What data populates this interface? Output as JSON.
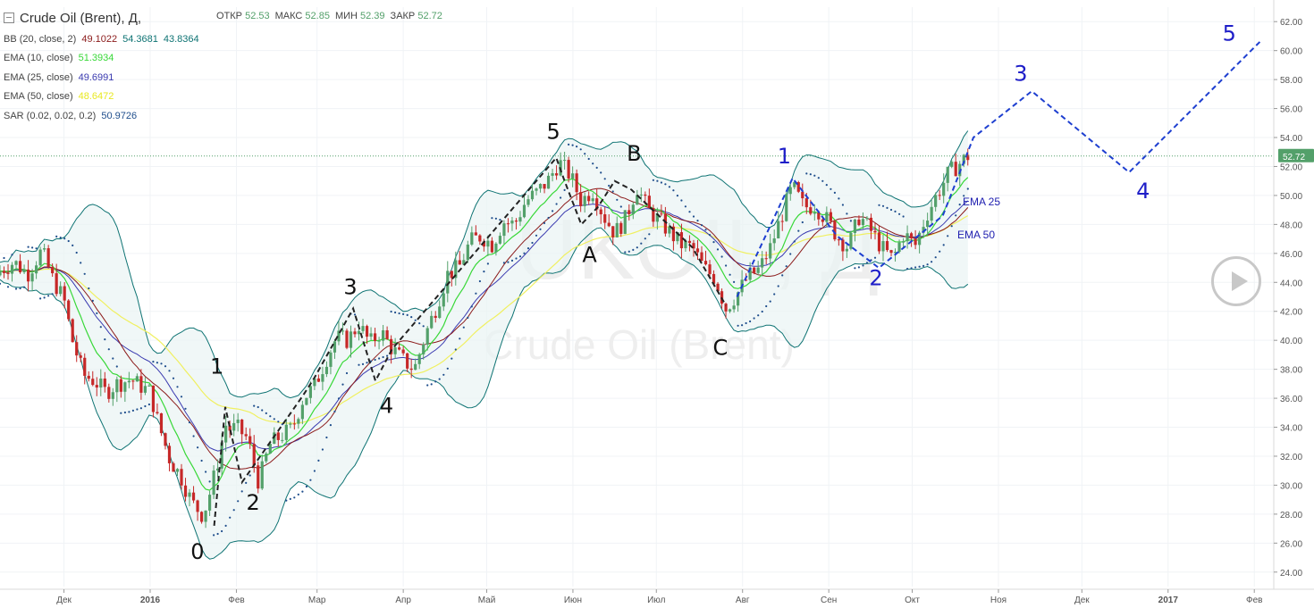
{
  "header": {
    "title": "Crude Oil (Brent), Д,",
    "ohlc": [
      {
        "label": "ОТКР",
        "value": "52.53"
      },
      {
        "label": "МАКС",
        "value": "52.85"
      },
      {
        "label": "МИН",
        "value": "52.39"
      },
      {
        "label": "ЗАКР",
        "value": "52.72"
      }
    ]
  },
  "indicators": [
    {
      "label": "BB (20, close, 2)",
      "values": [
        "49.1022",
        "54.3681",
        "43.8364"
      ],
      "colors": [
        "#8b1a1a",
        "#0e7373",
        "#0e7373"
      ]
    },
    {
      "label": "EMA (10, close)",
      "values": [
        "51.3934"
      ],
      "colors": [
        "#38d838"
      ]
    },
    {
      "label": "EMA (25, close)",
      "values": [
        "49.6991"
      ],
      "colors": [
        "#3a3ab0"
      ]
    },
    {
      "label": "EMA (50, close)",
      "values": [
        "48.6472"
      ],
      "colors": [
        "#e8e820"
      ]
    },
    {
      "label": "SAR (0.02, 0.02, 0.2)",
      "values": [
        "50.9726"
      ],
      "colors": [
        "#1f4e8c"
      ]
    }
  ],
  "watermark": {
    "symbol": "UKOIL, Д",
    "name": "Crude Oil (Brent)"
  },
  "last_price_label": "52.72",
  "annotations": {
    "ema25_label": "EMA 25",
    "ema50_label": "EMA 50"
  },
  "colors": {
    "up": "#53a06a",
    "down": "#c62828",
    "bb_band": "#0e7373",
    "bb_mid": "#8b1a1a",
    "ema10": "#38d838",
    "ema25": "#3a3ab0",
    "ema50": "#f0f060",
    "sar": "#1f4e8c",
    "wave_old": "#222222",
    "wave_new": "#1e3fd0"
  },
  "chart_data": {
    "type": "candlestick",
    "title": "Crude Oil (Brent), Д,",
    "ylim": [
      23,
      63
    ],
    "y_ticks": [
      "24.00",
      "26.00",
      "28.00",
      "30.00",
      "32.00",
      "34.00",
      "36.00",
      "38.00",
      "40.00",
      "42.00",
      "44.00",
      "46.00",
      "48.00",
      "50.00",
      "52.00",
      "54.00",
      "56.00",
      "58.00",
      "60.00",
      "62.00"
    ],
    "x_ticks": [
      "Дек",
      "2016",
      "Фев",
      "Мар",
      "Апр",
      "Май",
      "Июн",
      "Июл",
      "Авг",
      "Сен",
      "Окт",
      "Ноя",
      "Дек",
      "2017",
      "Фев"
    ],
    "x_tick_days": [
      0,
      31,
      62,
      91,
      122,
      152,
      183,
      213,
      244,
      275,
      305,
      336,
      366,
      397,
      428
    ],
    "x_range_days": [
      -23,
      435
    ],
    "close_series": [
      [
        -23,
        44.8
      ],
      [
        -18,
        45.4
      ],
      [
        -13,
        44.6
      ],
      [
        -8,
        46.2
      ],
      [
        -4,
        44.2
      ],
      [
        0,
        42.8
      ],
      [
        3,
        40.0
      ],
      [
        7,
        37.6
      ],
      [
        11,
        37.2
      ],
      [
        15,
        36.4
      ],
      [
        19,
        37.0
      ],
      [
        24,
        37.3
      ],
      [
        28,
        36.8
      ],
      [
        31,
        36.4
      ],
      [
        34,
        34.2
      ],
      [
        38,
        31.8
      ],
      [
        42,
        30.6
      ],
      [
        46,
        28.8
      ],
      [
        50,
        27.9
      ],
      [
        53,
        29.8
      ],
      [
        56,
        32.2
      ],
      [
        58,
        34.2
      ],
      [
        60,
        33.8
      ],
      [
        62,
        34.0
      ],
      [
        66,
        33.2
      ],
      [
        70,
        30.2
      ],
      [
        74,
        32.8
      ],
      [
        78,
        33.4
      ],
      [
        82,
        33.9
      ],
      [
        86,
        36.0
      ],
      [
        90,
        36.8
      ],
      [
        94,
        38.6
      ],
      [
        98,
        40.2
      ],
      [
        102,
        40.0
      ],
      [
        106,
        41.1
      ],
      [
        110,
        39.8
      ],
      [
        114,
        40.6
      ],
      [
        118,
        39.4
      ],
      [
        122,
        38.6
      ],
      [
        126,
        38.0
      ],
      [
        130,
        40.4
      ],
      [
        134,
        42.4
      ],
      [
        138,
        44.6
      ],
      [
        142,
        45.0
      ],
      [
        146,
        46.8
      ],
      [
        150,
        47.2
      ],
      [
        154,
        46.6
      ],
      [
        158,
        48.2
      ],
      [
        162,
        48.0
      ],
      [
        166,
        49.6
      ],
      [
        170,
        50.2
      ],
      [
        174,
        51.0
      ],
      [
        178,
        52.3
      ],
      [
        182,
        51.4
      ],
      [
        186,
        49.6
      ],
      [
        190,
        50.4
      ],
      [
        194,
        48.6
      ],
      [
        198,
        47.4
      ],
      [
        202,
        48.4
      ],
      [
        206,
        50.6
      ],
      [
        210,
        49.0
      ],
      [
        214,
        48.3
      ],
      [
        218,
        47.4
      ],
      [
        222,
        46.6
      ],
      [
        226,
        46.4
      ],
      [
        230,
        45.0
      ],
      [
        234,
        44.3
      ],
      [
        238,
        42.2
      ],
      [
        242,
        43.2
      ],
      [
        246,
        44.4
      ],
      [
        250,
        44.9
      ],
      [
        254,
        46.4
      ],
      [
        258,
        48.6
      ],
      [
        262,
        50.6
      ],
      [
        266,
        49.2
      ],
      [
        270,
        49.3
      ],
      [
        274,
        48.4
      ],
      [
        278,
        47.2
      ],
      [
        282,
        46.4
      ],
      [
        286,
        48.6
      ],
      [
        290,
        47.6
      ],
      [
        294,
        46.4
      ],
      [
        298,
        45.6
      ],
      [
        302,
        47.4
      ],
      [
        306,
        46.5
      ],
      [
        310,
        48.6
      ],
      [
        314,
        50.1
      ],
      [
        318,
        51.5
      ],
      [
        322,
        52.2
      ],
      [
        325,
        52.72
      ]
    ],
    "elliott_waves": [
      {
        "name": "",
        "style": "dashed",
        "points": [
          [
            54,
            27.2
          ],
          [
            58,
            35.4
          ],
          [
            64,
            30.2
          ],
          [
            86,
            36.2
          ],
          [
            90,
            37.4
          ],
          [
            104,
            42.2
          ],
          [
            112,
            37.2
          ],
          [
            118,
            39.4
          ],
          [
            177,
            52.6
          ],
          [
            180,
            51.0
          ],
          [
            186,
            48.0
          ],
          [
            192,
            49.2
          ],
          [
            198,
            51.0
          ],
          [
            204,
            50.4
          ],
          [
            226,
            46.4
          ],
          [
            238,
            42.4
          ]
        ]
      },
      {
        "name": "",
        "style": "dashed",
        "points": [
          [
            242,
            43.0
          ],
          [
            262,
            51.2
          ],
          [
            278,
            47.2
          ],
          [
            293,
            45.0
          ],
          [
            316,
            48.6
          ],
          [
            327,
            54.0
          ],
          [
            348,
            57.2
          ],
          [
            383,
            51.6
          ],
          [
            430,
            60.6
          ]
        ]
      }
    ],
    "wave_labels": [
      {
        "text": "0",
        "x": 48,
        "y": 24.9,
        "group": "old"
      },
      {
        "text": "1",
        "x": 55,
        "y": 37.7,
        "group": "old"
      },
      {
        "text": "2",
        "x": 68,
        "y": 28.3,
        "group": "old"
      },
      {
        "text": "3",
        "x": 103,
        "y": 43.2,
        "group": "old"
      },
      {
        "text": "4",
        "x": 116,
        "y": 35.0,
        "group": "old"
      },
      {
        "text": "5",
        "x": 176,
        "y": 53.9,
        "group": "old"
      },
      {
        "text": "A",
        "x": 189,
        "y": 45.4,
        "group": "old"
      },
      {
        "text": "B",
        "x": 205,
        "y": 52.4,
        "group": "old"
      },
      {
        "text": "C",
        "x": 236,
        "y": 39.0,
        "group": "old"
      },
      {
        "text": "1",
        "x": 259,
        "y": 52.2,
        "group": "new"
      },
      {
        "text": "2",
        "x": 292,
        "y": 43.8,
        "group": "new"
      },
      {
        "text": "3",
        "x": 344,
        "y": 57.9,
        "group": "new"
      },
      {
        "text": "4",
        "x": 388,
        "y": 49.8,
        "group": "new"
      },
      {
        "text": "5",
        "x": 419,
        "y": 60.7,
        "group": "new"
      }
    ]
  }
}
